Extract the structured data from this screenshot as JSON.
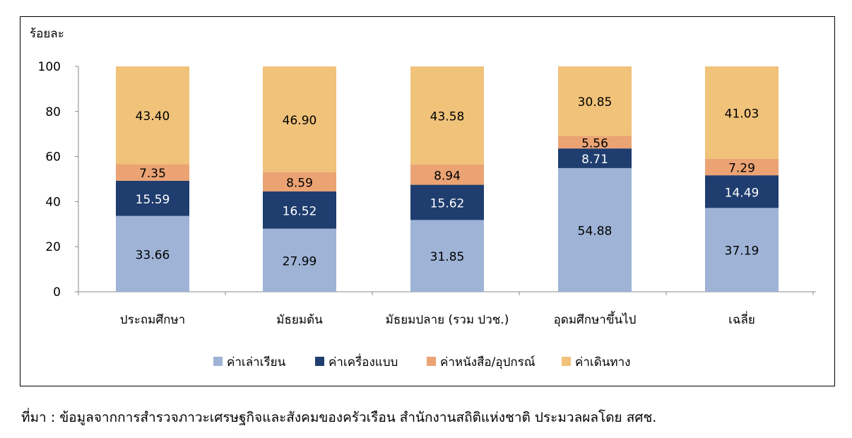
{
  "chart_data": {
    "type": "bar",
    "stacked": true,
    "ylabel": "ร้อยละ",
    "ylim": [
      0,
      100
    ],
    "yticks": [
      0,
      20,
      40,
      60,
      80,
      100
    ],
    "grid": false,
    "legend_position": "bottom",
    "categories": [
      "ประถมศึกษา",
      "มัธยมต้น",
      "มัธยมปลาย (รวม ปวช.)",
      "อุดมศึกษาขึ้นไป",
      "เฉลี่ย"
    ],
    "series": [
      {
        "name": "ค่าเล่าเรียน",
        "color": "#9eb3d6",
        "label_color": "#000000",
        "values": [
          33.66,
          27.99,
          31.85,
          54.88,
          37.19
        ]
      },
      {
        "name": "ค่าเครื่องแบบ",
        "color": "#1f3d6e",
        "label_color": "#ffffff",
        "values": [
          15.59,
          16.52,
          15.62,
          8.71,
          14.49
        ]
      },
      {
        "name": "ค่าหนังสือ/อุปกรณ์",
        "color": "#eba374",
        "label_color": "#000000",
        "values": [
          7.35,
          8.59,
          8.94,
          5.56,
          7.29
        ]
      },
      {
        "name": "ค่าเดินทาง",
        "color": "#f0c27a",
        "label_color": "#000000",
        "values": [
          43.4,
          46.9,
          43.58,
          30.85,
          41.03
        ]
      }
    ]
  },
  "footer": {
    "source": "ที่มา : ข้อมูลจากการสำรวจภาวะเศรษฐกิจและสังคมของครัวเรือน สำนักงานสถิติแห่งชาติ ประมวลผลโดย สศช."
  }
}
